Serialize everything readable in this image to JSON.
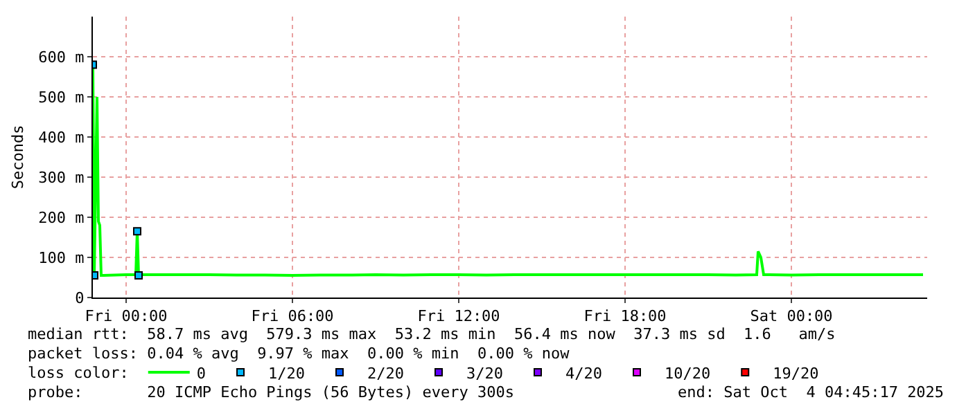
{
  "chart_data": {
    "type": "line",
    "ylabel": "Seconds",
    "xlim": [
      "2025-10-02T22:48",
      "2025-10-04T04:54"
    ],
    "xticks": [
      {
        "value": "2025-10-03T00:00",
        "label": "Fri 00:00"
      },
      {
        "value": "2025-10-03T06:00",
        "label": "Fri 06:00"
      },
      {
        "value": "2025-10-03T12:00",
        "label": "Fri 12:00"
      },
      {
        "value": "2025-10-03T18:00",
        "label": "Fri 18:00"
      },
      {
        "value": "2025-10-04T00:00",
        "label": "Sat 00:00"
      }
    ],
    "ylim": [
      0,
      700
    ],
    "yticks": [
      0,
      {
        "value": 100,
        "label": "100 m"
      },
      {
        "value": 200,
        "label": "200 m"
      },
      {
        "value": 300,
        "label": "300 m"
      },
      {
        "value": 400,
        "label": "400 m"
      },
      {
        "value": 500,
        "label": "500 m"
      },
      {
        "value": 600,
        "label": "600 m"
      }
    ],
    "grid": true,
    "legend": "bottom",
    "legend_title": "loss color:",
    "series": [
      {
        "name": "0",
        "color": "#00ff00",
        "x": [
          "2025-10-02T22:48",
          "2025-10-02T22:51",
          "2025-10-02T22:57",
          "2025-10-02T23:00",
          "2025-10-02T23:03",
          "2025-10-02T23:06",
          "2025-10-02T23:12",
          "2025-10-03T00:00",
          "2025-10-03T00:21",
          "2025-10-03T00:24",
          "2025-10-03T00:27",
          "2025-10-03T00:36",
          "2025-10-03T01:00",
          "2025-10-03T02:00",
          "2025-10-03T03:00",
          "2025-10-03T04:00",
          "2025-10-03T05:00",
          "2025-10-03T06:00",
          "2025-10-03T07:00",
          "2025-10-03T08:00",
          "2025-10-03T09:00",
          "2025-10-03T10:00",
          "2025-10-03T11:00",
          "2025-10-03T12:00",
          "2025-10-03T13:00",
          "2025-10-03T14:00",
          "2025-10-03T15:00",
          "2025-10-03T16:00",
          "2025-10-03T17:00",
          "2025-10-03T18:00",
          "2025-10-03T19:00",
          "2025-10-03T20:00",
          "2025-10-03T21:00",
          "2025-10-03T22:00",
          "2025-10-03T22:45",
          "2025-10-03T22:48",
          "2025-10-03T22:54",
          "2025-10-03T23:00",
          "2025-10-03T23:12",
          "2025-10-04T00:00",
          "2025-10-04T01:00",
          "2025-10-04T02:00",
          "2025-10-04T03:00",
          "2025-10-04T04:00",
          "2025-10-04T04:45"
        ],
        "values": [
          580,
          55,
          500,
          190,
          180,
          55,
          55,
          57,
          57,
          165,
          55,
          57,
          57,
          57,
          57,
          56,
          56,
          55,
          56,
          56,
          57,
          56,
          57,
          57,
          56,
          57,
          57,
          57,
          57,
          57,
          57,
          57,
          57,
          56,
          57,
          115,
          100,
          57,
          57,
          56,
          57,
          57,
          57,
          57,
          57
        ]
      },
      {
        "name": "1/20",
        "color": "#00b8ff",
        "type": "scatter",
        "marker": "square",
        "x": [
          "2025-10-02T22:48",
          "2025-10-02T22:51",
          "2025-10-03T00:24",
          "2025-10-03T00:27"
        ],
        "values": [
          580,
          55,
          165,
          55
        ]
      },
      {
        "name": "2/20",
        "color": "#0059ff",
        "type": "scatter",
        "marker": "square",
        "values": [
          null
        ]
      },
      {
        "name": "3/20",
        "color": "#5e00ff",
        "type": "scatter",
        "marker": "square",
        "values": [
          null
        ]
      },
      {
        "name": "4/20",
        "color": "#7e00ff",
        "type": "scatter",
        "marker": "square",
        "values": [
          null
        ]
      },
      {
        "name": "10/20",
        "color": "#dd00ff",
        "type": "scatter",
        "marker": "square",
        "values": [
          null
        ]
      },
      {
        "name": "19/20",
        "color": "#ff0000",
        "type": "scatter",
        "marker": "square",
        "values": [
          null
        ]
      }
    ],
    "annotations": [
      "median rtt:  58.7 ms avg  579.3 ms max  53.2 ms min  56.4 ms now  37.3 ms sd  1.6   am/s",
      "packet loss: 0.04 % avg  9.97 % max  0.00 % min  0.00 % now",
      "probe:       20 ICMP Echo Pings (56 Bytes) every 300s",
      "end: Sat Oct  4 04:45:17 2025"
    ]
  }
}
